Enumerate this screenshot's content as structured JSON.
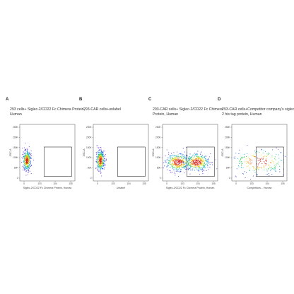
{
  "figure": {
    "panels": [
      {
        "letter": "A",
        "title": "293 cells+ Siglec-2/CD22 Fc Chimera Protein, Human"
      },
      {
        "letter": "B",
        "title": "293-CAR cells+unlabel"
      },
      {
        "letter": "C",
        "title": "293-CAR cells+ Siglec-2/CD22 Fc Chimera Protein, Human"
      },
      {
        "letter": "D",
        "title": "293-CAR cells+Competitor company's siglec-2 his tag protein, Human"
      }
    ]
  },
  "chart_data": [
    {
      "type": "scatter",
      "title": "293 cells+ Siglec-2/CD22 Fc Chimera Protein, Human",
      "xlabel": "Siglec-2/CD22 Fc Chimera Protein, Human",
      "ylabel": "SSC-A",
      "yticks": [
        "250K",
        "200K",
        "150K",
        "100K",
        "50K",
        "0"
      ],
      "xticks": [
        "0",
        "10^3",
        "10^4",
        "10^5"
      ],
      "gate": true,
      "populations": [
        {
          "x": 0.13,
          "y": 0.36,
          "sx": 0.035,
          "sy": 0.09,
          "n": 380
        }
      ]
    },
    {
      "type": "scatter",
      "title": "293-CAR cells+unlabel",
      "xlabel": "Unlabel",
      "ylabel": "SSC-A",
      "yticks": [
        "250K",
        "200K",
        "150K",
        "100K",
        "50K",
        "0"
      ],
      "xticks": [
        "0",
        "10^3",
        "10^4",
        "10^5"
      ],
      "gate": true,
      "populations": [
        {
          "x": 0.13,
          "y": 0.36,
          "sx": 0.035,
          "sy": 0.09,
          "n": 380
        }
      ]
    },
    {
      "type": "scatter",
      "title": "293-CAR cells+ Siglec-2/CD22 Fc Chimera Protein, Human",
      "xlabel": "Siglec-2/CD22 Fc Chimera Protein, Human",
      "ylabel": "SSC-A",
      "yticks": [
        "250K",
        "200K",
        "150K",
        "100K",
        "50K",
        "0"
      ],
      "xticks": [
        "0",
        "10^3",
        "10^4",
        "10^5"
      ],
      "gate": true,
      "populations": [
        {
          "x": 0.28,
          "y": 0.33,
          "sx": 0.12,
          "sy": 0.08,
          "n": 380
        },
        {
          "x": 0.62,
          "y": 0.33,
          "sx": 0.12,
          "sy": 0.08,
          "n": 380
        }
      ]
    },
    {
      "type": "scatter",
      "title": "293-CAR cells+Competitor company's siglec-2 his tag protein, Human",
      "xlabel": "Competitors... Human",
      "ylabel": "SSC-A",
      "yticks": [
        "250K",
        "200K",
        "150K",
        "100K",
        "50K",
        "0"
      ],
      "xticks": [
        "0",
        "10^3",
        "10^4",
        "10^5"
      ],
      "gate": true,
      "populations": [
        {
          "x": 0.5,
          "y": 0.34,
          "sx": 0.26,
          "sy": 0.12,
          "n": 220
        }
      ]
    }
  ]
}
